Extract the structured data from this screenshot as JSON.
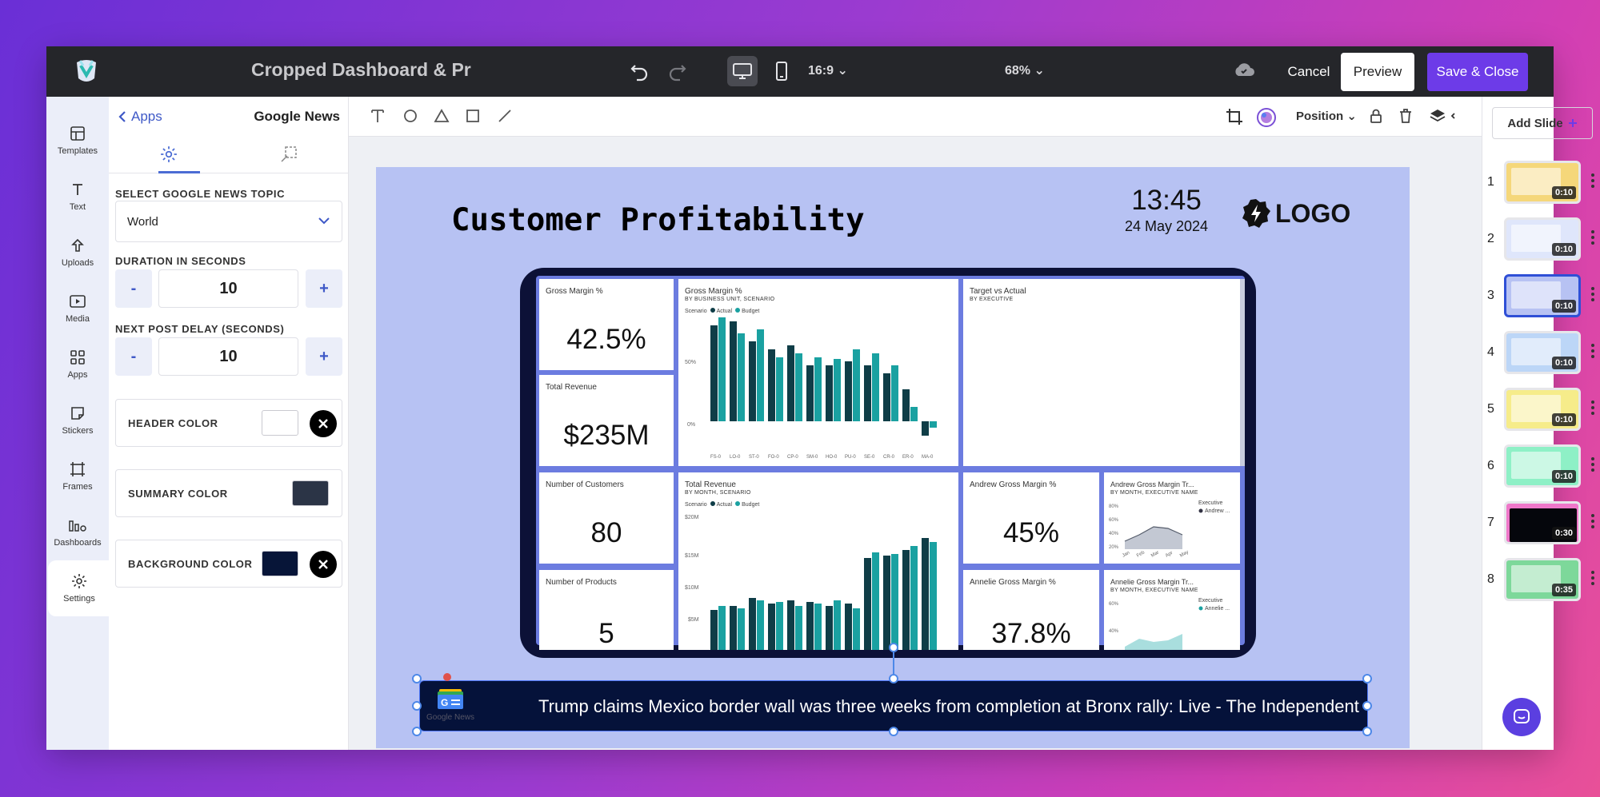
{
  "topbar": {
    "title": "Cropped Dashboard & Pr",
    "ratio": "16:9",
    "zoom": "68%",
    "cancel": "Cancel",
    "preview": "Preview",
    "save": "Save & Close"
  },
  "nav": [
    {
      "label": "Templates",
      "icon": "templates-icon"
    },
    {
      "label": "Text",
      "icon": "text-icon"
    },
    {
      "label": "Uploads",
      "icon": "upload-icon"
    },
    {
      "label": "Media",
      "icon": "media-icon"
    },
    {
      "label": "Apps",
      "icon": "apps-icon"
    },
    {
      "label": "Stickers",
      "icon": "sticker-icon"
    },
    {
      "label": "Frames",
      "icon": "frame-icon"
    },
    {
      "label": "Dashboards",
      "icon": "dashboard-icon"
    },
    {
      "label": "Settings",
      "icon": "gear-icon"
    }
  ],
  "panel": {
    "back": "Apps",
    "app_name": "Google News",
    "topic_label": "SELECT GOOGLE NEWS TOPIC",
    "topic_value": "World",
    "duration_label": "DURATION IN SECONDS",
    "duration_value": "10",
    "delay_label": "NEXT POST DELAY (SECONDS)",
    "delay_value": "10",
    "minus": "-",
    "plus": "+",
    "header_color_label": "HEADER COLOR",
    "summary_color_label": "SUMMARY COLOR",
    "background_color_label": "BACKGROUND COLOR",
    "header_color": "#ffffff",
    "summary_color": "#2b3446",
    "background_color": "#071538"
  },
  "toolbar": {
    "position": "Position"
  },
  "slide": {
    "title": "Customer Profitability",
    "time": "13:45",
    "date": "24 May 2024",
    "logo": "LOGO",
    "ticker_text": "Trump claims Mexico border wall was three weeks from completion at Bronx rally: Live - The Independent",
    "ticker_source": "Google News"
  },
  "dashboard": {
    "gross_margin": {
      "title": "Gross Margin %",
      "value": "42.5%"
    },
    "total_revenue": {
      "title": "Total Revenue",
      "value": "$235M"
    },
    "customers": {
      "title": "Number of Customers",
      "value": "80"
    },
    "products": {
      "title": "Number of Products",
      "value": "5"
    },
    "gm_chart": {
      "title": "Gross Margin %",
      "subtitle": "BY BUSINESS UNIT, SCENARIO",
      "legend_label": "Scenario",
      "legend_a": "Actual",
      "legend_b": "Budget",
      "y50": "50%",
      "y0": "0%",
      "categories": [
        "FS-0",
        "LO-0",
        "ST-0",
        "FO-0",
        "CP-0",
        "SM-0",
        "HO-0",
        "PU-0",
        "SE-0",
        "CR-0",
        "ER-0",
        "MA-0"
      ]
    },
    "target": {
      "title": "Target vs Actual",
      "subtitle": "BY EXECUTIVE"
    },
    "rev_chart": {
      "title": "Total Revenue",
      "subtitle": "BY MONTH, SCENARIO",
      "legend_label": "Scenario",
      "legend_a": "Actual",
      "legend_b": "Budget",
      "y20": "$20M",
      "y15": "$15M",
      "y10": "$10M",
      "y5": "$5M"
    },
    "andrew_margin": {
      "title": "Andrew Gross Margin %",
      "value": "45%"
    },
    "andrew_trend": {
      "title": "Andrew Gross Margin Tr...",
      "subtitle": "BY MONTH, EXECUTIVE NAME",
      "legend_label": "Executive",
      "legend_name": "Andrew ...",
      "y80": "80%",
      "y60": "60%",
      "y40": "40%",
      "y20": "20%",
      "months": [
        "Jan",
        "Feb",
        "Mar",
        "Apr",
        "May"
      ]
    },
    "annelie_margin": {
      "title": "Annelie Gross Margin %",
      "value": "37.8%"
    },
    "annelie_trend": {
      "title": "Annelie Gross Margin Tr...",
      "subtitle": "BY MONTH, EXECUTIVE NAME",
      "legend_label": "Executive",
      "legend_name": "Annelie ...",
      "y60": "60%",
      "y40": "40%"
    }
  },
  "slides_panel": {
    "add_slide": "Add Slide",
    "slides": [
      {
        "num": "1",
        "duration": "0:10",
        "color": "#f5d77a"
      },
      {
        "num": "2",
        "duration": "0:10",
        "color": "#dfe6fb"
      },
      {
        "num": "3",
        "duration": "0:10",
        "color": "#b7c2f3"
      },
      {
        "num": "4",
        "duration": "0:10",
        "color": "#bcd6f7"
      },
      {
        "num": "5",
        "duration": "0:10",
        "color": "#f6ec8a"
      },
      {
        "num": "6",
        "duration": "0:10",
        "color": "#8ef0c6"
      },
      {
        "num": "7",
        "duration": "0:30",
        "color": "#ef77c9"
      },
      {
        "num": "8",
        "duration": "0:35",
        "color": "#7dd89a"
      }
    ]
  }
}
